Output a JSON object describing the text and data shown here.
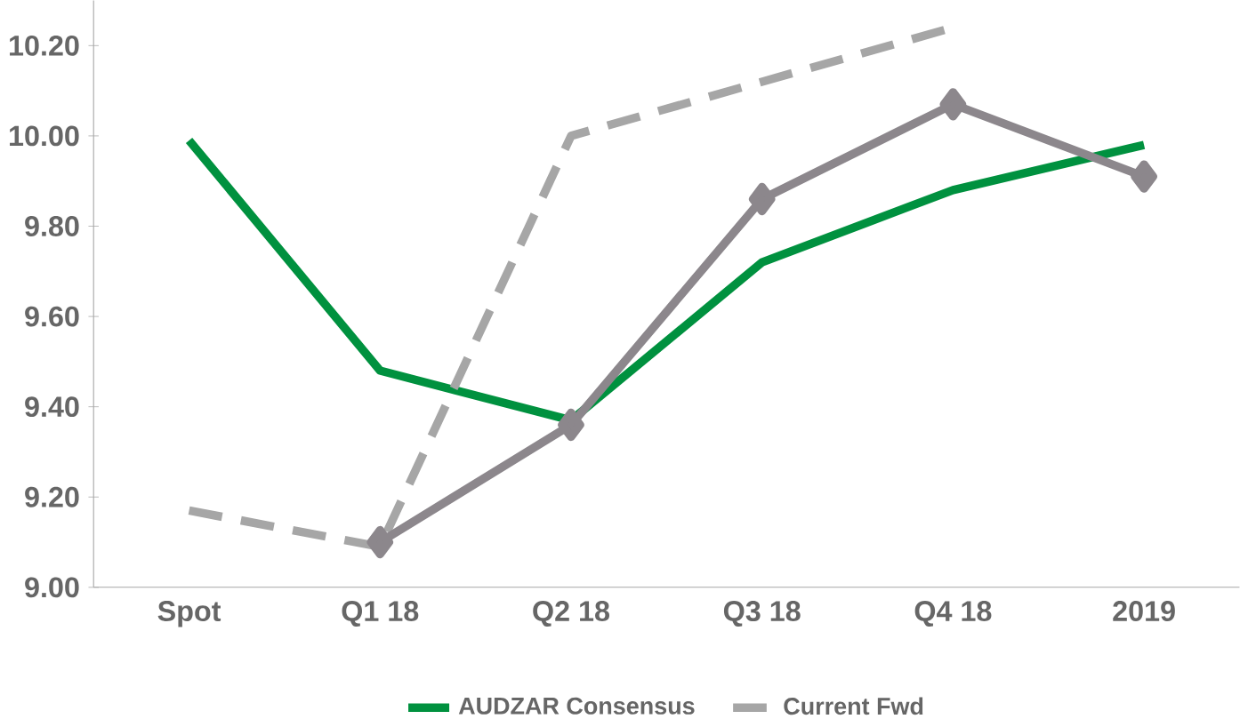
{
  "chart_data": {
    "type": "line",
    "categories": [
      "Spot",
      "Q1 18",
      "Q2 18",
      "Q3 18",
      "Q4 18",
      "2019"
    ],
    "series": [
      {
        "name": "AUDZAR Consensus",
        "color": "#00913f",
        "line_style": "solid",
        "marker": "none",
        "values": [
          9.99,
          9.48,
          9.37,
          9.72,
          9.88,
          9.98
        ]
      },
      {
        "name": "Current Fwd",
        "color": "#a6a6a6",
        "line_style": "dashed",
        "marker": "none",
        "values": [
          9.17,
          9.09,
          10.0,
          10.12,
          10.24,
          null
        ]
      },
      {
        "color": "#8c878c",
        "line_style": "solid",
        "marker": "diamond",
        "values": [
          null,
          9.1,
          9.36,
          9.86,
          10.07,
          9.91
        ]
      }
    ],
    "ylim": [
      9.0,
      10.3
    ],
    "yticks": [
      {
        "value": 9.0,
        "label": "9.00"
      },
      {
        "value": 9.2,
        "label": "9.20"
      },
      {
        "value": 9.4,
        "label": "9.40"
      },
      {
        "value": 9.6,
        "label": "9.60"
      },
      {
        "value": 9.8,
        "label": "9.80"
      },
      {
        "value": 10.0,
        "label": "10.00"
      },
      {
        "value": 10.2,
        "label": "10.20"
      }
    ],
    "grid": false,
    "legend": "bottom"
  }
}
